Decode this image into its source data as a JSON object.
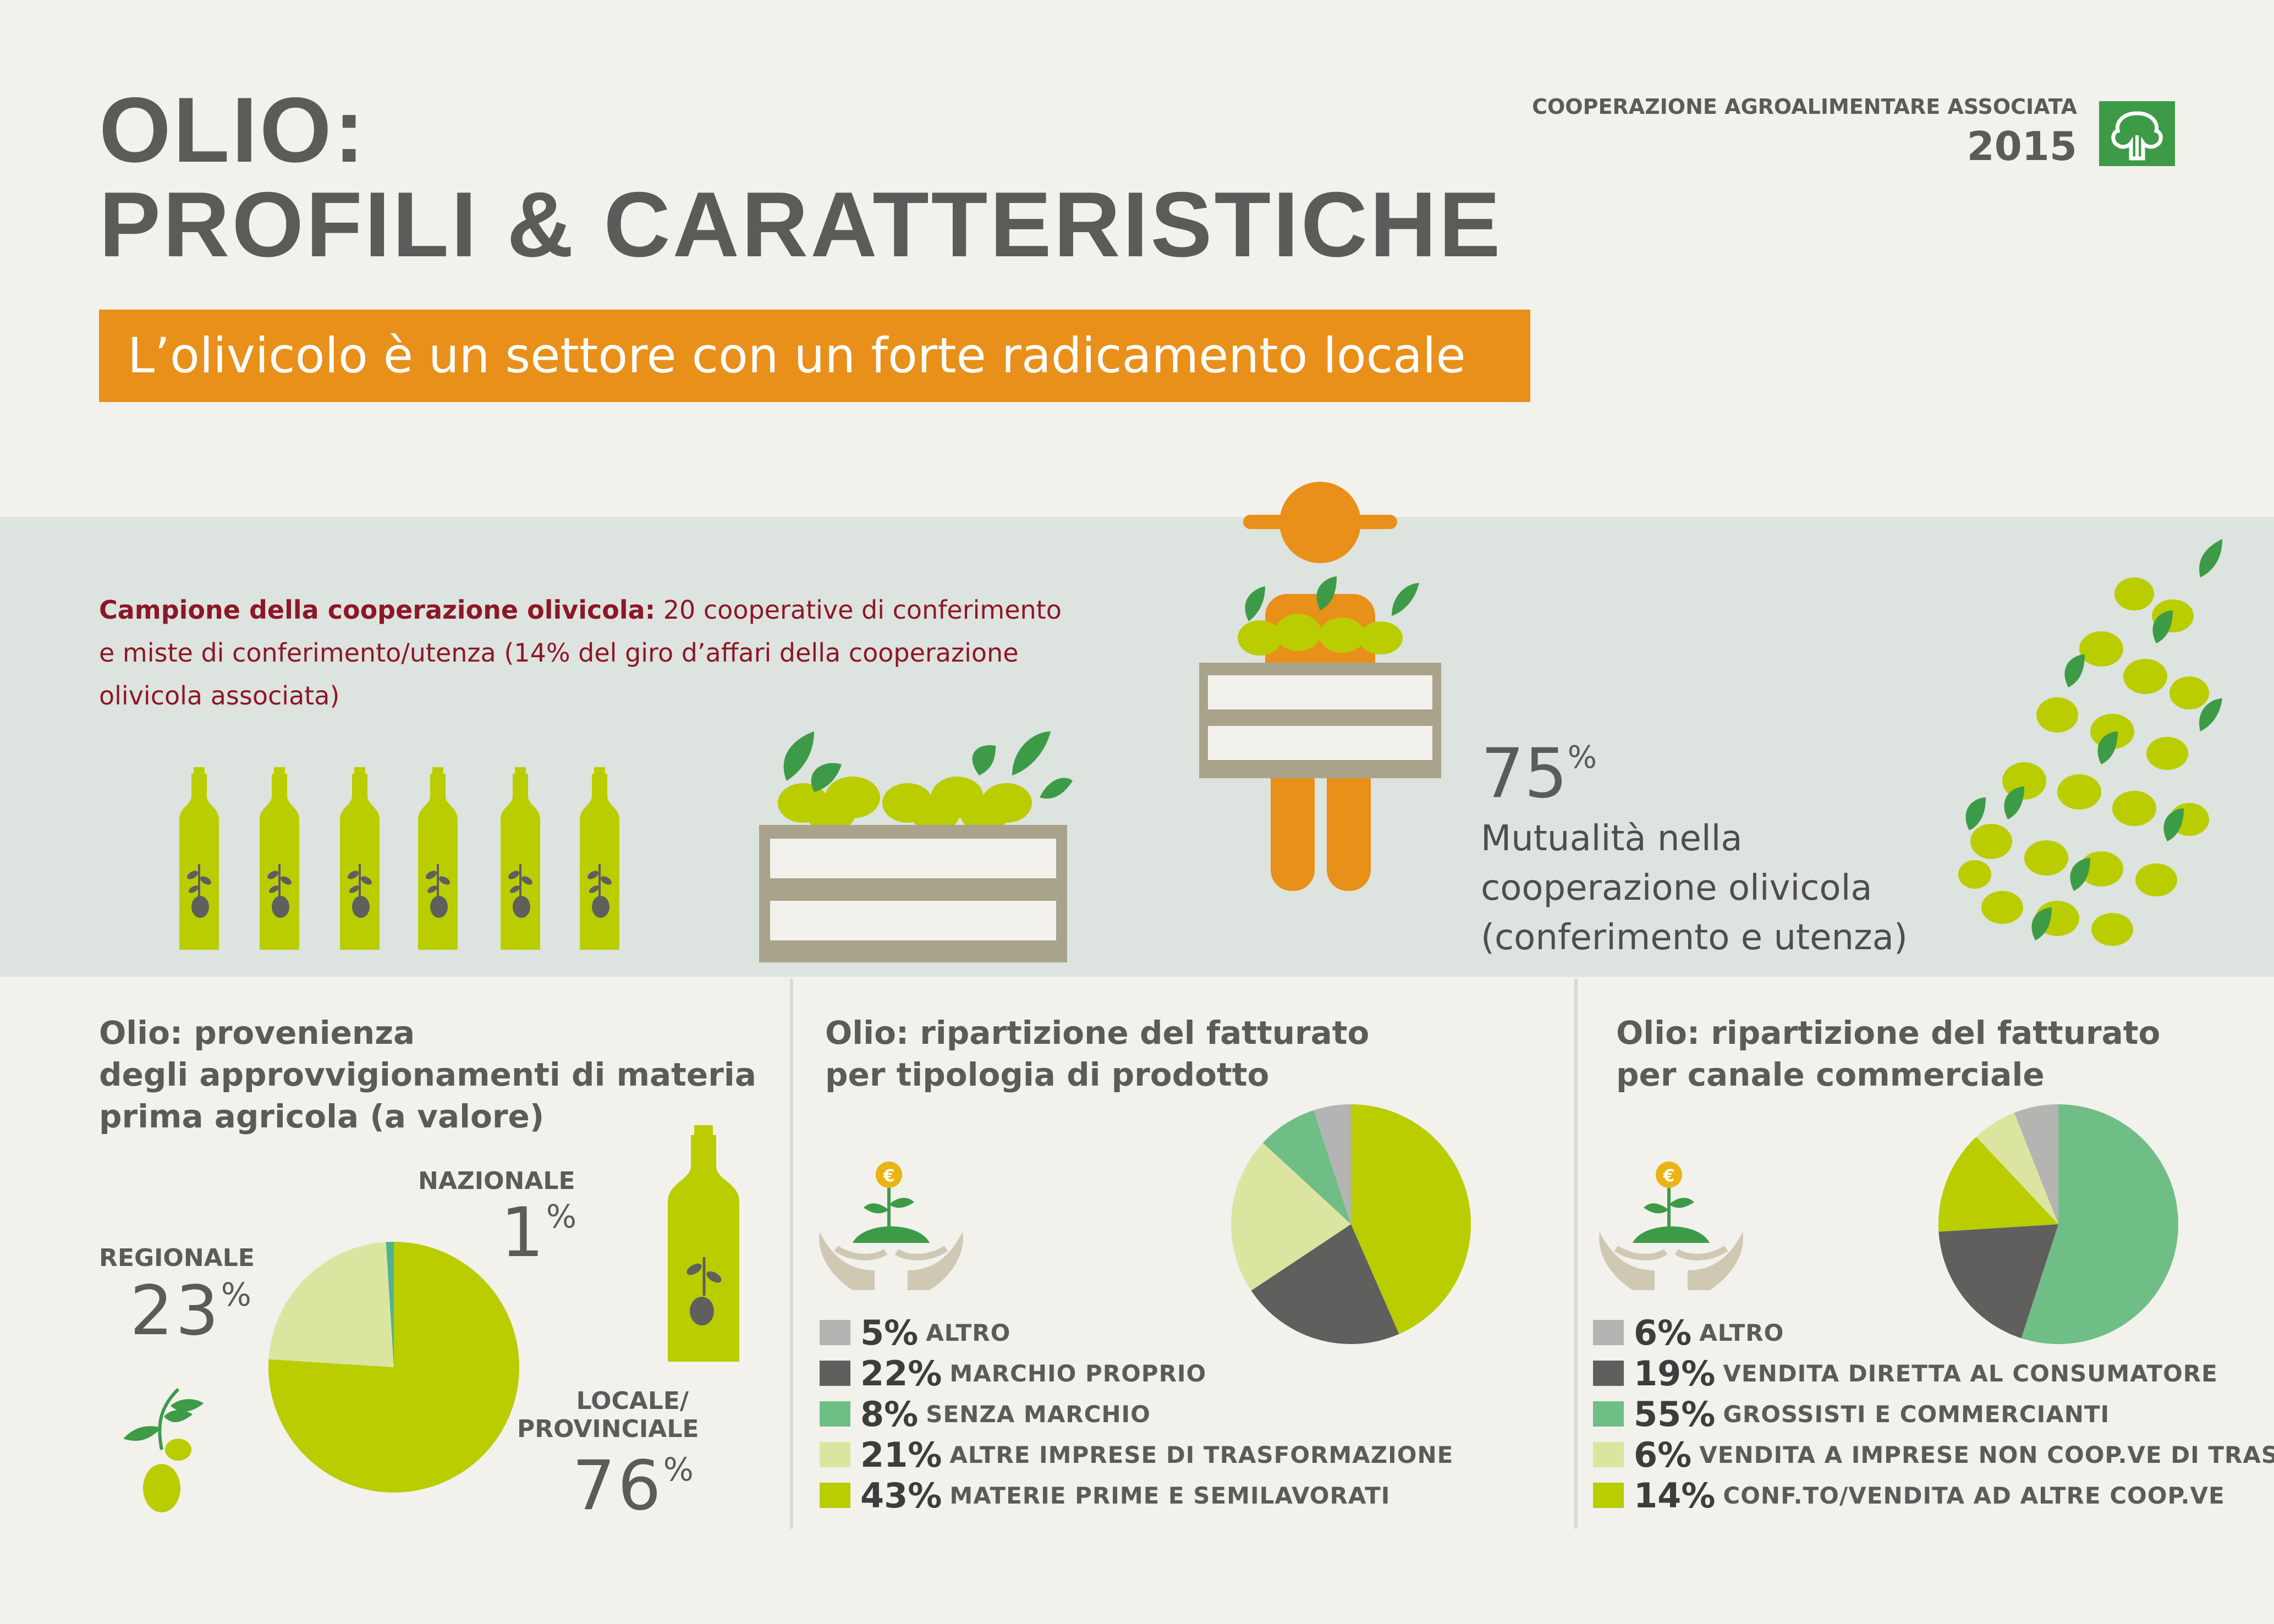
{
  "header": {
    "title_line1": "OLIO:",
    "title_line2": "PROFILI & CARATTERISTICHE",
    "brand_name": "COOPERAZIONE AGROALIMENTARE ASSOCIATA",
    "brand_year": "2015",
    "subtitle": "L’olivicolo è un settore con un forte radicamento locale"
  },
  "sample": {
    "label": "Campione della cooperazione olivicola:",
    "line1": " 20 cooperative di conferimento",
    "line2": "e miste di conferimento/utenza (14% del giro d’affari della cooperazione",
    "line3": "olivicola associata)"
  },
  "mutuality": {
    "value": "75",
    "unit": "%",
    "line1": "Mutualità nella",
    "line2": "cooperazione olivicola",
    "line3": "(conferimento e utenza)"
  },
  "colors": {
    "lime": "#b9cd00",
    "lime_light": "#dce59f",
    "green_mid": "#6fbe86",
    "dark_gray": "#5f5f5e",
    "light_gray": "#b4b4b2",
    "orange": "#e8901a",
    "crate": "#a9a38c",
    "leaf": "#3d9b47",
    "olive": "#b9cd00",
    "teal": "#52b194"
  },
  "icons": [
    "bottle-icon",
    "olive-crate-icon",
    "farmer-icon",
    "olive-branch-icon",
    "euro-plant-hands-icon",
    "olive-sprout-icon"
  ],
  "sections": {
    "origin": {
      "title_line1": "Olio: provenienza",
      "title_line2": "degli approvvigionamenti di materia",
      "title_line3": "prima agricola (a valore)",
      "labels": {
        "regionale": "REGIONALE",
        "regionale_value": "23",
        "nazionale": "NAZIONALE",
        "nazionale_value": "1",
        "locale_line1": "LOCALE/",
        "locale_line2": "PROVINCIALE",
        "locale_value": "76",
        "unit": "%"
      }
    },
    "product": {
      "title_line1": "Olio: ripartizione del fatturato",
      "title_line2": "per tipologia di prodotto"
    },
    "channel": {
      "title_line1": "Olio: ripartizione del fatturato",
      "title_line2": "per canale commerciale"
    }
  },
  "chart_data": [
    {
      "type": "pie",
      "title": "Olio: provenienza degli approvvigionamenti di materia prima agricola (a valore)",
      "categories": [
        "LOCALE/PROVINCIALE",
        "REGIONALE",
        "NAZIONALE"
      ],
      "values": [
        76,
        23,
        1
      ],
      "colors": [
        "#b9cd00",
        "#dce59f",
        "#52b194"
      ]
    },
    {
      "type": "pie",
      "title": "Olio: ripartizione del fatturato per tipologia di prodotto",
      "categories": [
        "ALTRO",
        "MARCHIO PROPRIO",
        "SENZA MARCHIO",
        "ALTRE IMPRESE DI TRASFORMAZIONE",
        "MATERIE PRIME E SEMILAVORATI"
      ],
      "values": [
        5,
        22,
        8,
        21,
        43
      ],
      "value_labels": [
        "5%",
        "22%",
        "8%",
        "21%",
        "43%"
      ],
      "colors": [
        "#b4b4b2",
        "#5f5f5e",
        "#6fbe86",
        "#dce59f",
        "#b9cd00"
      ],
      "pie_order": [
        4,
        1,
        3,
        2,
        0
      ]
    },
    {
      "type": "pie",
      "title": "Olio: ripartizione del fatturato per canale commerciale",
      "categories": [
        "ALTRO",
        "VENDITA DIRETTA AL CONSUMATORE",
        "GROSSISTI E COMMERCIANTI",
        "VENDITA A IMPRESE NON COOP.VE DI TRASF.",
        "CONF.TO/VENDITA AD ALTRE COOP.VE"
      ],
      "values": [
        6,
        19,
        55,
        6,
        14
      ],
      "value_labels": [
        "6%",
        "19%",
        "55%",
        "6%",
        "14%"
      ],
      "colors": [
        "#b4b4b2",
        "#5f5f5e",
        "#6fbe86",
        "#dce59f",
        "#b9cd00"
      ],
      "pie_order": [
        2,
        1,
        4,
        3,
        0
      ]
    }
  ]
}
